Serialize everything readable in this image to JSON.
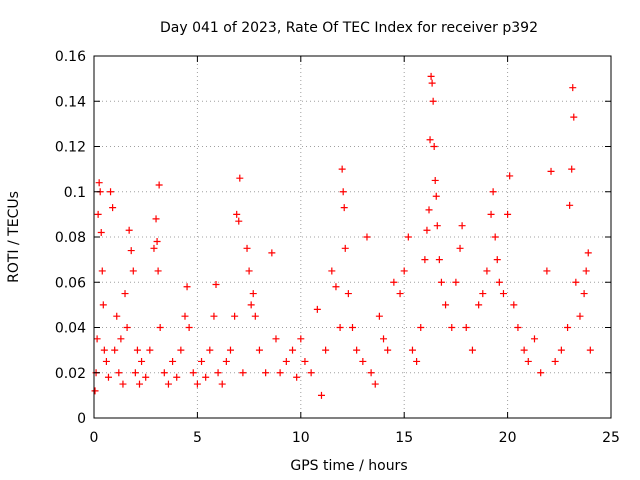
{
  "chart_data": {
    "type": "scatter",
    "title": "Day 041 of 2023, Rate Of TEC Index for receiver p392",
    "xlabel": "GPS time / hours",
    "ylabel": "ROTI / TECUs",
    "xlim": [
      0,
      25
    ],
    "ylim": [
      0,
      0.16
    ],
    "x_ticks": [
      0,
      5,
      10,
      15,
      20,
      25
    ],
    "y_ticks": [
      0,
      0.02,
      0.04,
      0.06,
      0.08,
      0.1,
      0.12,
      0.14,
      0.16
    ],
    "x_tick_labels": [
      "0",
      "5",
      "10",
      "15",
      "20",
      "25"
    ],
    "y_tick_labels": [
      "0",
      "0.02",
      "0.04",
      "0.06",
      "0.08",
      "0.1",
      "0.12",
      "0.14",
      "0.16"
    ],
    "grid": true,
    "marker": "+",
    "marker_color": "#ff0000",
    "series": [
      {
        "values_description_note": "",
        "points": [
          [
            0.05,
            0.012
          ],
          [
            0.1,
            0.02
          ],
          [
            0.15,
            0.035
          ],
          [
            0.2,
            0.09
          ],
          [
            0.25,
            0.104
          ],
          [
            0.3,
            0.1
          ],
          [
            0.35,
            0.082
          ],
          [
            0.4,
            0.065
          ],
          [
            0.45,
            0.05
          ],
          [
            0.5,
            0.03
          ],
          [
            0.6,
            0.025
          ],
          [
            0.7,
            0.018
          ],
          [
            0.8,
            0.1
          ],
          [
            0.9,
            0.093
          ],
          [
            1.0,
            0.03
          ],
          [
            1.1,
            0.045
          ],
          [
            1.2,
            0.02
          ],
          [
            1.3,
            0.035
          ],
          [
            1.4,
            0.015
          ],
          [
            1.5,
            0.055
          ],
          [
            1.6,
            0.04
          ],
          [
            1.7,
            0.083
          ],
          [
            1.8,
            0.074
          ],
          [
            1.9,
            0.065
          ],
          [
            2.0,
            0.02
          ],
          [
            2.1,
            0.03
          ],
          [
            2.2,
            0.015
          ],
          [
            2.3,
            0.025
          ],
          [
            2.5,
            0.018
          ],
          [
            2.7,
            0.03
          ],
          [
            2.9,
            0.075
          ],
          [
            3.0,
            0.088
          ],
          [
            3.05,
            0.078
          ],
          [
            3.1,
            0.065
          ],
          [
            3.15,
            0.103
          ],
          [
            3.2,
            0.04
          ],
          [
            3.4,
            0.02
          ],
          [
            3.6,
            0.015
          ],
          [
            3.8,
            0.025
          ],
          [
            4.0,
            0.018
          ],
          [
            4.2,
            0.03
          ],
          [
            4.4,
            0.045
          ],
          [
            4.5,
            0.058
          ],
          [
            4.6,
            0.04
          ],
          [
            4.8,
            0.02
          ],
          [
            5.0,
            0.015
          ],
          [
            5.2,
            0.025
          ],
          [
            5.4,
            0.018
          ],
          [
            5.6,
            0.03
          ],
          [
            5.8,
            0.045
          ],
          [
            5.9,
            0.059
          ],
          [
            6.0,
            0.02
          ],
          [
            6.2,
            0.015
          ],
          [
            6.4,
            0.025
          ],
          [
            6.6,
            0.03
          ],
          [
            6.8,
            0.045
          ],
          [
            6.9,
            0.09
          ],
          [
            7.0,
            0.087
          ],
          [
            7.05,
            0.106
          ],
          [
            7.2,
            0.02
          ],
          [
            7.4,
            0.075
          ],
          [
            7.5,
            0.065
          ],
          [
            7.6,
            0.05
          ],
          [
            7.7,
            0.055
          ],
          [
            7.8,
            0.045
          ],
          [
            8.0,
            0.03
          ],
          [
            8.3,
            0.02
          ],
          [
            8.6,
            0.073
          ],
          [
            8.8,
            0.035
          ],
          [
            9.0,
            0.02
          ],
          [
            9.3,
            0.025
          ],
          [
            9.6,
            0.03
          ],
          [
            9.8,
            0.018
          ],
          [
            10.0,
            0.035
          ],
          [
            10.2,
            0.025
          ],
          [
            10.5,
            0.02
          ],
          [
            10.8,
            0.048
          ],
          [
            11.0,
            0.01
          ],
          [
            11.2,
            0.03
          ],
          [
            11.5,
            0.065
          ],
          [
            11.7,
            0.058
          ],
          [
            11.9,
            0.04
          ],
          [
            12.0,
            0.11
          ],
          [
            12.05,
            0.1
          ],
          [
            12.1,
            0.093
          ],
          [
            12.15,
            0.075
          ],
          [
            12.3,
            0.055
          ],
          [
            12.5,
            0.04
          ],
          [
            12.7,
            0.03
          ],
          [
            13.0,
            0.025
          ],
          [
            13.2,
            0.08
          ],
          [
            13.4,
            0.02
          ],
          [
            13.6,
            0.015
          ],
          [
            13.8,
            0.045
          ],
          [
            14.0,
            0.035
          ],
          [
            14.2,
            0.03
          ],
          [
            14.5,
            0.06
          ],
          [
            14.8,
            0.055
          ],
          [
            15.0,
            0.065
          ],
          [
            15.2,
            0.08
          ],
          [
            15.4,
            0.03
          ],
          [
            15.6,
            0.025
          ],
          [
            15.8,
            0.04
          ],
          [
            16.0,
            0.07
          ],
          [
            16.1,
            0.083
          ],
          [
            16.2,
            0.092
          ],
          [
            16.25,
            0.123
          ],
          [
            16.3,
            0.151
          ],
          [
            16.35,
            0.148
          ],
          [
            16.4,
            0.14
          ],
          [
            16.45,
            0.12
          ],
          [
            16.5,
            0.105
          ],
          [
            16.55,
            0.098
          ],
          [
            16.6,
            0.085
          ],
          [
            16.7,
            0.07
          ],
          [
            16.8,
            0.06
          ],
          [
            17.0,
            0.05
          ],
          [
            17.3,
            0.04
          ],
          [
            17.5,
            0.06
          ],
          [
            17.7,
            0.075
          ],
          [
            17.8,
            0.085
          ],
          [
            18.0,
            0.04
          ],
          [
            18.3,
            0.03
          ],
          [
            18.6,
            0.05
          ],
          [
            18.8,
            0.055
          ],
          [
            19.0,
            0.065
          ],
          [
            19.2,
            0.09
          ],
          [
            19.3,
            0.1
          ],
          [
            19.4,
            0.08
          ],
          [
            19.5,
            0.07
          ],
          [
            19.6,
            0.06
          ],
          [
            19.8,
            0.055
          ],
          [
            20.0,
            0.09
          ],
          [
            20.1,
            0.107
          ],
          [
            20.3,
            0.05
          ],
          [
            20.5,
            0.04
          ],
          [
            20.8,
            0.03
          ],
          [
            21.0,
            0.025
          ],
          [
            21.3,
            0.035
          ],
          [
            21.6,
            0.02
          ],
          [
            21.9,
            0.065
          ],
          [
            22.1,
            0.109
          ],
          [
            22.3,
            0.025
          ],
          [
            22.6,
            0.03
          ],
          [
            22.9,
            0.04
          ],
          [
            23.0,
            0.094
          ],
          [
            23.1,
            0.11
          ],
          [
            23.15,
            0.146
          ],
          [
            23.2,
            0.133
          ],
          [
            23.3,
            0.06
          ],
          [
            23.5,
            0.045
          ],
          [
            23.7,
            0.055
          ],
          [
            23.8,
            0.065
          ],
          [
            23.9,
            0.073
          ],
          [
            24.0,
            0.03
          ]
        ]
      }
    ]
  }
}
